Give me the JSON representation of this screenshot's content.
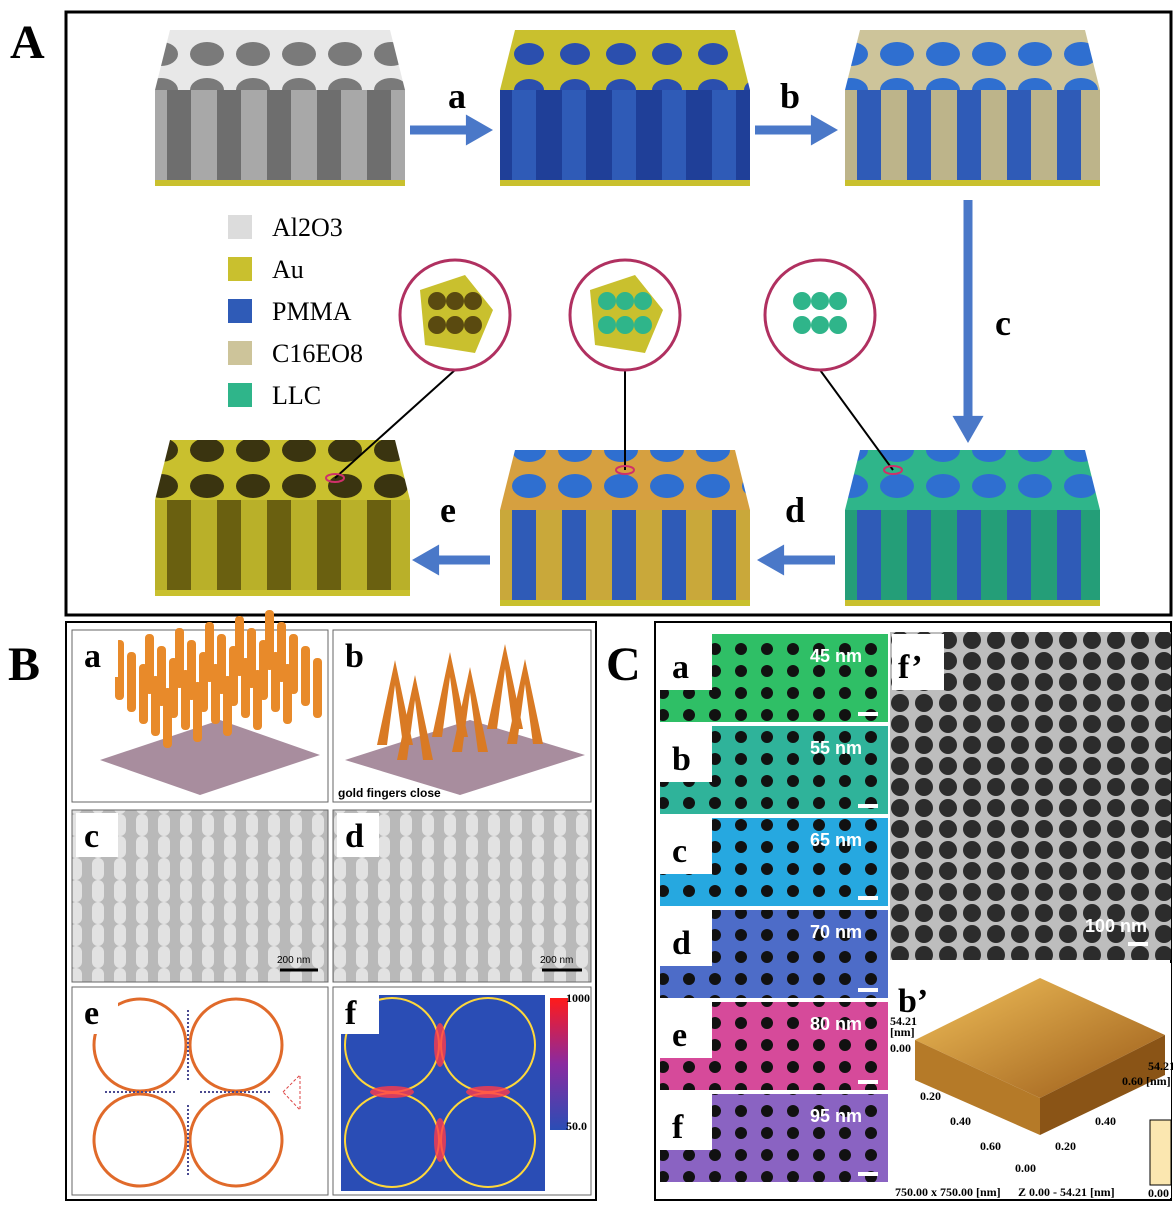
{
  "panel_a": {
    "label": "A",
    "steps": [
      "a",
      "b",
      "c",
      "d",
      "e"
    ],
    "legend": [
      {
        "name": "Al2O3",
        "color": "#dcdcdc"
      },
      {
        "name": "Au",
        "color": "#c9c02e"
      },
      {
        "name": "PMMA",
        "color": "#2f5bb7"
      },
      {
        "name": "C16EO8",
        "color": "#cdc49a"
      },
      {
        "name": "LLC",
        "color": "#2fb58a"
      }
    ]
  },
  "panel_b": {
    "label": "B",
    "subpanels": [
      "a",
      "b",
      "c",
      "d",
      "e",
      "f"
    ],
    "caption": "gold fingers close",
    "scale_bars": [
      "200 nm",
      "200 nm"
    ],
    "colorbar": [
      "1000",
      "50.0"
    ]
  },
  "panel_c": {
    "label": "C",
    "rows": [
      {
        "label": "a",
        "size": "45 nm",
        "color": "#2fbf66"
      },
      {
        "label": "b",
        "size": "55 nm",
        "color": "#2fb39a"
      },
      {
        "label": "c",
        "size": "65 nm",
        "color": "#26a8e0"
      },
      {
        "label": "d",
        "size": "70 nm",
        "color": "#4d6cc8"
      },
      {
        "label": "e",
        "size": "80 nm",
        "color": "#d64a9a"
      },
      {
        "label": "f",
        "size": "95 nm",
        "color": "#8a63c2"
      }
    ],
    "sem": {
      "label": "f’",
      "scale_bar": "100 nm"
    },
    "afm": {
      "label": "b’",
      "z_axis": [
        "54.21",
        "[nm]",
        "0.00"
      ],
      "x_ticks": [
        "0.20",
        "0.40",
        "0.60"
      ],
      "y_ticks": [
        "0.00",
        "0.20",
        "0.40",
        "0.60 [nm]"
      ],
      "z_right": "54.21",
      "z_right_min": "0.00",
      "footer": [
        "750.00 x 750.00 [nm]",
        "Z 0.00 - 54.21 [nm]"
      ]
    }
  }
}
